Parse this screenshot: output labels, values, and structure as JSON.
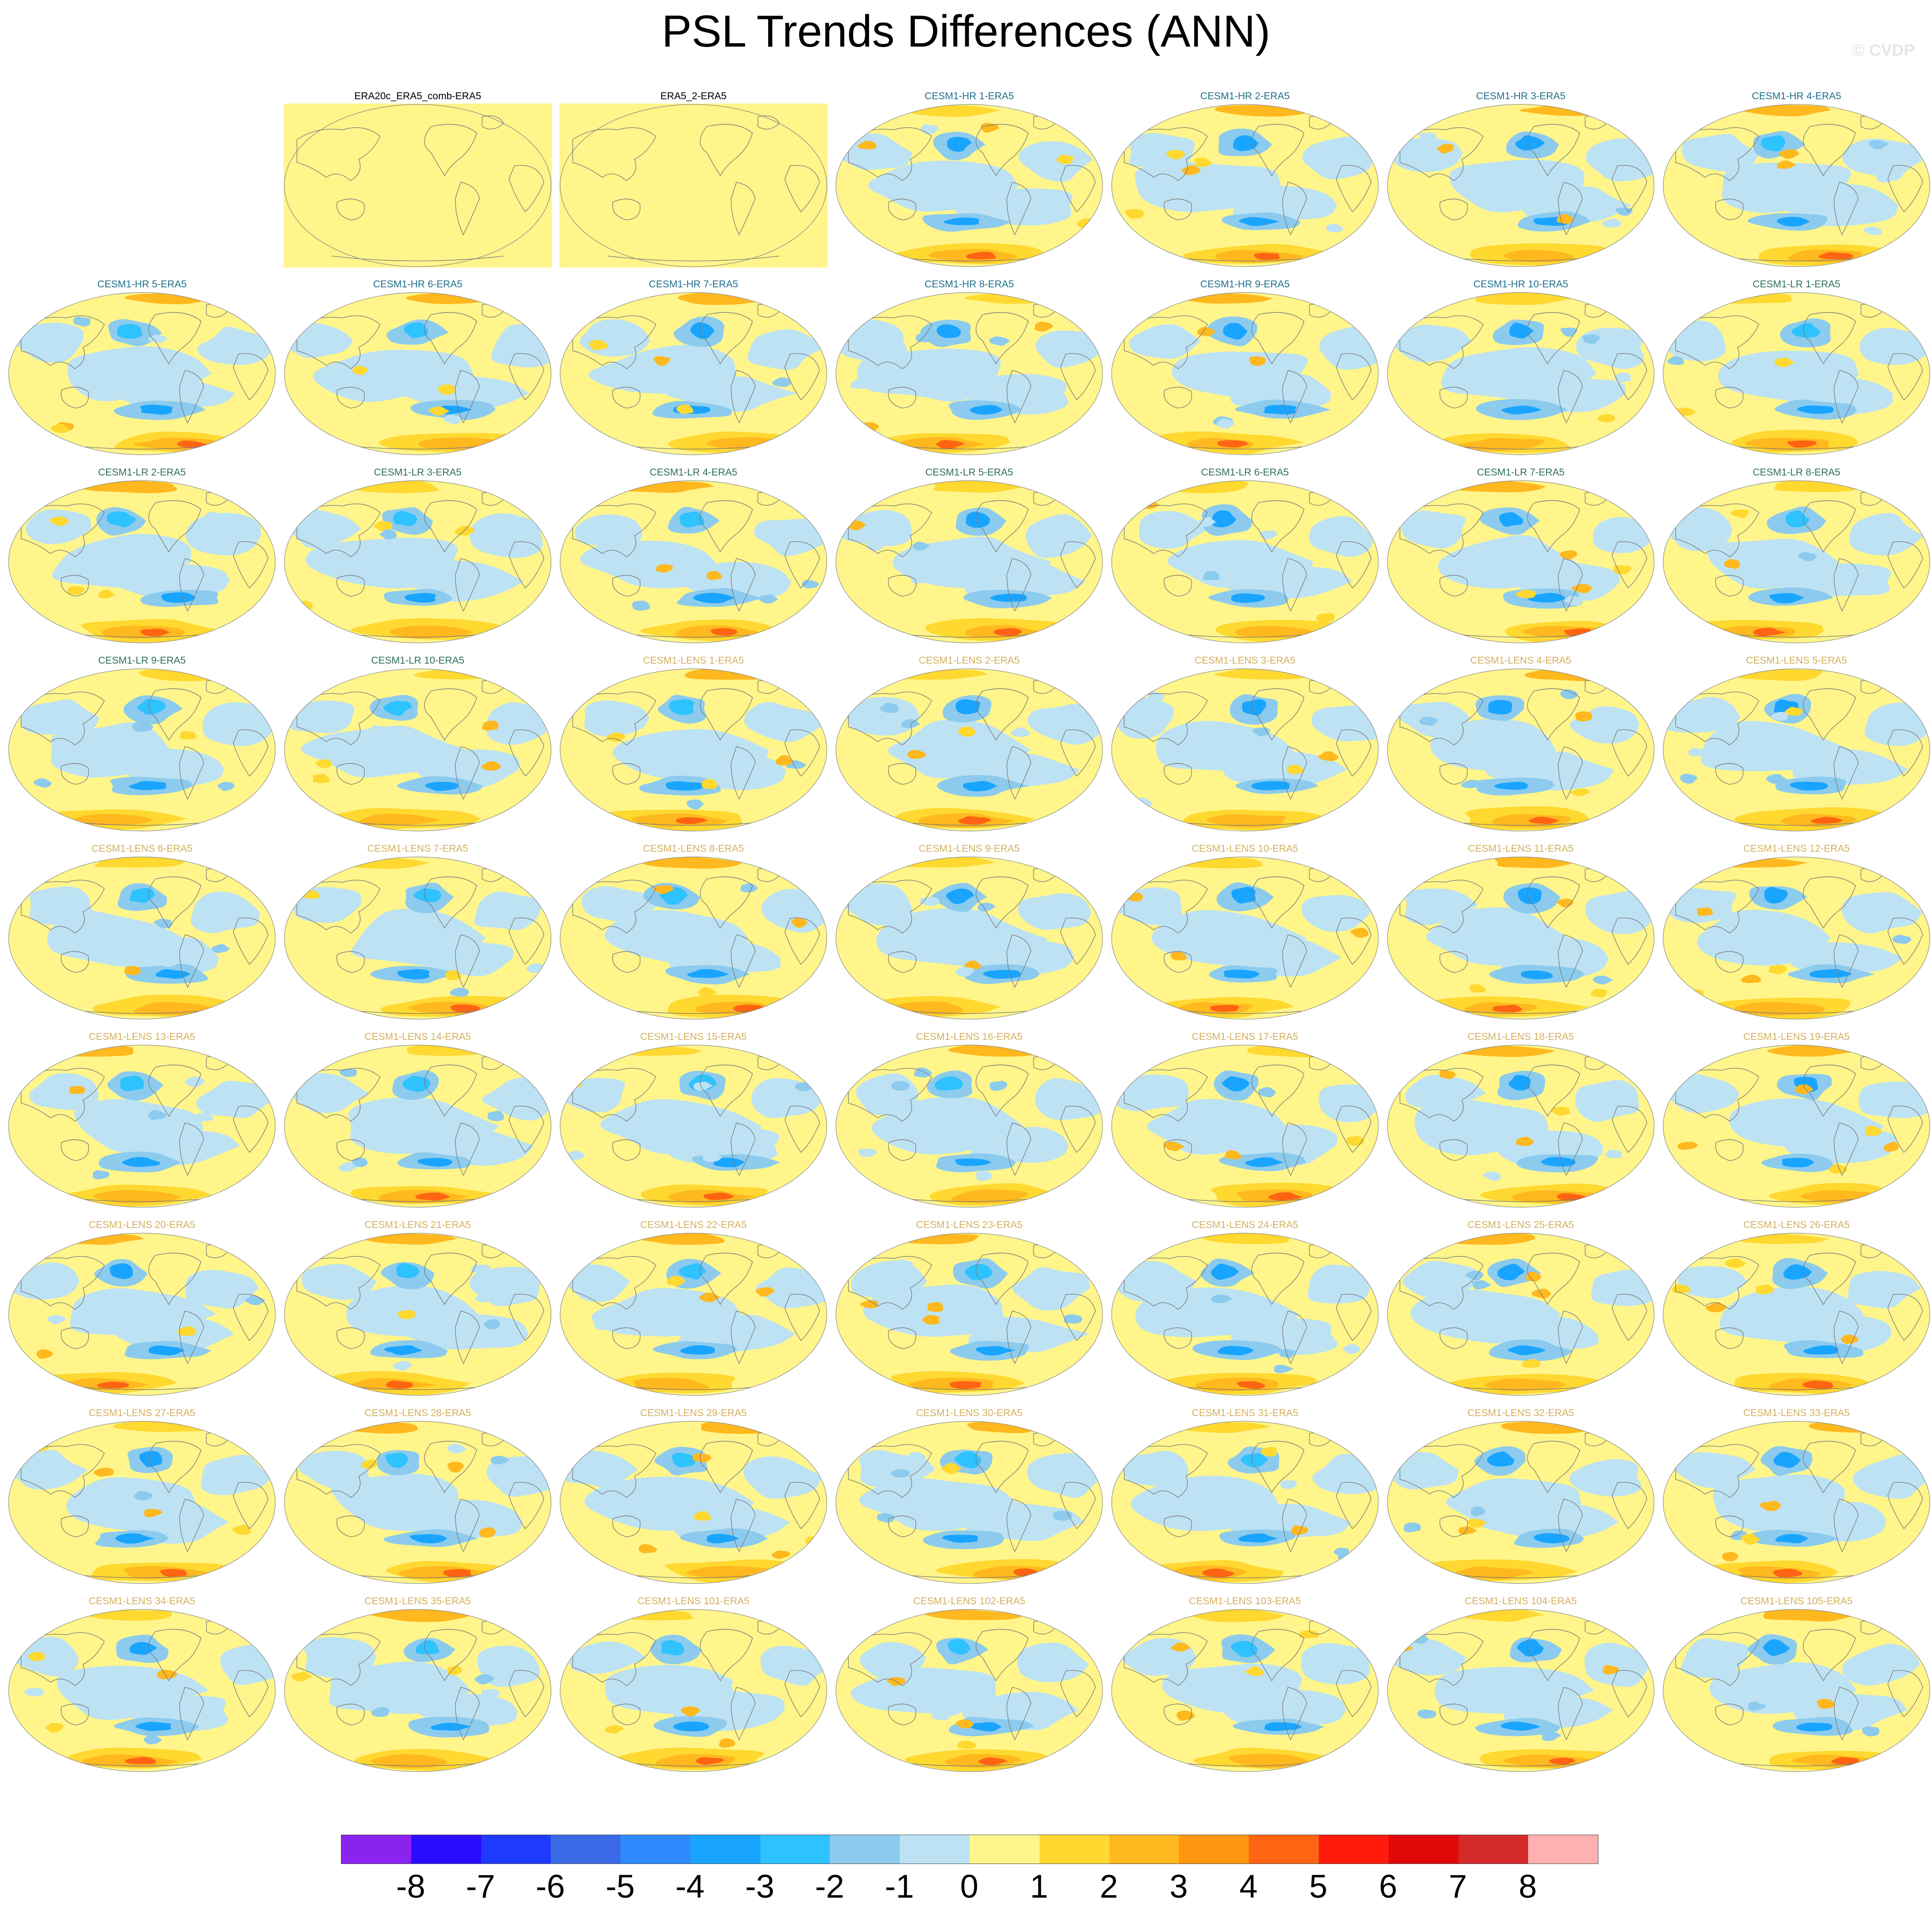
{
  "title": "PSL Trends Differences (ANN)",
  "watermark": "© CVDP",
  "colors": {
    "obs_title": "#000000",
    "hr_title": "#1f6f8b",
    "lr_title": "#2f6f5f",
    "lens_title": "#d4b060",
    "ocean_base": "#fff58a",
    "coast": "#7a7a7a"
  },
  "panels": [
    {
      "label": "ERA20c_ERA5_comb-ERA5",
      "group": "obs"
    },
    {
      "label": "ERA5_2-ERA5",
      "group": "obs"
    },
    {
      "label": "CESM1-HR 1-ERA5",
      "group": "hr"
    },
    {
      "label": "CESM1-HR 2-ERA5",
      "group": "hr"
    },
    {
      "label": "CESM1-HR 3-ERA5",
      "group": "hr"
    },
    {
      "label": "CESM1-HR 4-ERA5",
      "group": "hr"
    },
    {
      "label": "CESM1-HR 5-ERA5",
      "group": "hr"
    },
    {
      "label": "CESM1-HR 6-ERA5",
      "group": "hr"
    },
    {
      "label": "CESM1-HR 7-ERA5",
      "group": "hr"
    },
    {
      "label": "CESM1-HR 8-ERA5",
      "group": "hr"
    },
    {
      "label": "CESM1-HR 9-ERA5",
      "group": "hr"
    },
    {
      "label": "CESM1-HR 10-ERA5",
      "group": "hr"
    },
    {
      "label": "CESM1-LR 1-ERA5",
      "group": "lr"
    },
    {
      "label": "CESM1-LR 2-ERA5",
      "group": "lr"
    },
    {
      "label": "CESM1-LR 3-ERA5",
      "group": "lr"
    },
    {
      "label": "CESM1-LR 4-ERA5",
      "group": "lr"
    },
    {
      "label": "CESM1-LR 5-ERA5",
      "group": "lr"
    },
    {
      "label": "CESM1-LR 6-ERA5",
      "group": "lr"
    },
    {
      "label": "CESM1-LR 7-ERA5",
      "group": "lr"
    },
    {
      "label": "CESM1-LR 8-ERA5",
      "group": "lr"
    },
    {
      "label": "CESM1-LR 9-ERA5",
      "group": "lr"
    },
    {
      "label": "CESM1-LR 10-ERA5",
      "group": "lr"
    },
    {
      "label": "CESM1-LENS 1-ERA5",
      "group": "lens"
    },
    {
      "label": "CESM1-LENS 2-ERA5",
      "group": "lens"
    },
    {
      "label": "CESM1-LENS 3-ERA5",
      "group": "lens"
    },
    {
      "label": "CESM1-LENS 4-ERA5",
      "group": "lens"
    },
    {
      "label": "CESM1-LENS 5-ERA5",
      "group": "lens"
    },
    {
      "label": "CESM1-LENS 6-ERA5",
      "group": "lens"
    },
    {
      "label": "CESM1-LENS 7-ERA5",
      "group": "lens"
    },
    {
      "label": "CESM1-LENS 8-ERA5",
      "group": "lens"
    },
    {
      "label": "CESM1-LENS 9-ERA5",
      "group": "lens"
    },
    {
      "label": "CESM1-LENS 10-ERA5",
      "group": "lens"
    },
    {
      "label": "CESM1-LENS 11-ERA5",
      "group": "lens"
    },
    {
      "label": "CESM1-LENS 12-ERA5",
      "group": "lens"
    },
    {
      "label": "CESM1-LENS 13-ERA5",
      "group": "lens"
    },
    {
      "label": "CESM1-LENS 14-ERA5",
      "group": "lens"
    },
    {
      "label": "CESM1-LENS 15-ERA5",
      "group": "lens"
    },
    {
      "label": "CESM1-LENS 16-ERA5",
      "group": "lens"
    },
    {
      "label": "CESM1-LENS 17-ERA5",
      "group": "lens"
    },
    {
      "label": "CESM1-LENS 18-ERA5",
      "group": "lens"
    },
    {
      "label": "CESM1-LENS 19-ERA5",
      "group": "lens"
    },
    {
      "label": "CESM1-LENS 20-ERA5",
      "group": "lens"
    },
    {
      "label": "CESM1-LENS 21-ERA5",
      "group": "lens"
    },
    {
      "label": "CESM1-LENS 22-ERA5",
      "group": "lens"
    },
    {
      "label": "CESM1-LENS 23-ERA5",
      "group": "lens"
    },
    {
      "label": "CESM1-LENS 24-ERA5",
      "group": "lens"
    },
    {
      "label": "CESM1-LENS 25-ERA5",
      "group": "lens"
    },
    {
      "label": "CESM1-LENS 26-ERA5",
      "group": "lens"
    },
    {
      "label": "CESM1-LENS 27-ERA5",
      "group": "lens"
    },
    {
      "label": "CESM1-LENS 28-ERA5",
      "group": "lens"
    },
    {
      "label": "CESM1-LENS 29-ERA5",
      "group": "lens"
    },
    {
      "label": "CESM1-LENS 30-ERA5",
      "group": "lens"
    },
    {
      "label": "CESM1-LENS 31-ERA5",
      "group": "lens"
    },
    {
      "label": "CESM1-LENS 32-ERA5",
      "group": "lens"
    },
    {
      "label": "CESM1-LENS 33-ERA5",
      "group": "lens"
    },
    {
      "label": "CESM1-LENS 34-ERA5",
      "group": "lens"
    },
    {
      "label": "CESM1-LENS 35-ERA5",
      "group": "lens"
    },
    {
      "label": "CESM1-LENS 101-ERA5",
      "group": "lens"
    },
    {
      "label": "CESM1-LENS 102-ERA5",
      "group": "lens"
    },
    {
      "label": "CESM1-LENS 103-ERA5",
      "group": "lens"
    },
    {
      "label": "CESM1-LENS 104-ERA5",
      "group": "lens"
    },
    {
      "label": "CESM1-LENS 105-ERA5",
      "group": "lens"
    }
  ],
  "colorbar": {
    "labels": [
      "-8",
      "-7",
      "-6",
      "-5",
      "-4",
      "-3",
      "-2",
      "-1",
      "0",
      "1",
      "2",
      "3",
      "4",
      "5",
      "6",
      "7",
      "8"
    ],
    "colors": [
      "#8a22f0",
      "#2a0cff",
      "#1f3aff",
      "#3a6ae6",
      "#2e8bff",
      "#19a5ff",
      "#2ec2ff",
      "#8ccbee",
      "#bde2f3",
      "#fff58a",
      "#ffd830",
      "#ffb81e",
      "#ff9610",
      "#ff6412",
      "#ff1a0c",
      "#e00808",
      "#d42a2a",
      "#ffb0b0"
    ]
  }
}
